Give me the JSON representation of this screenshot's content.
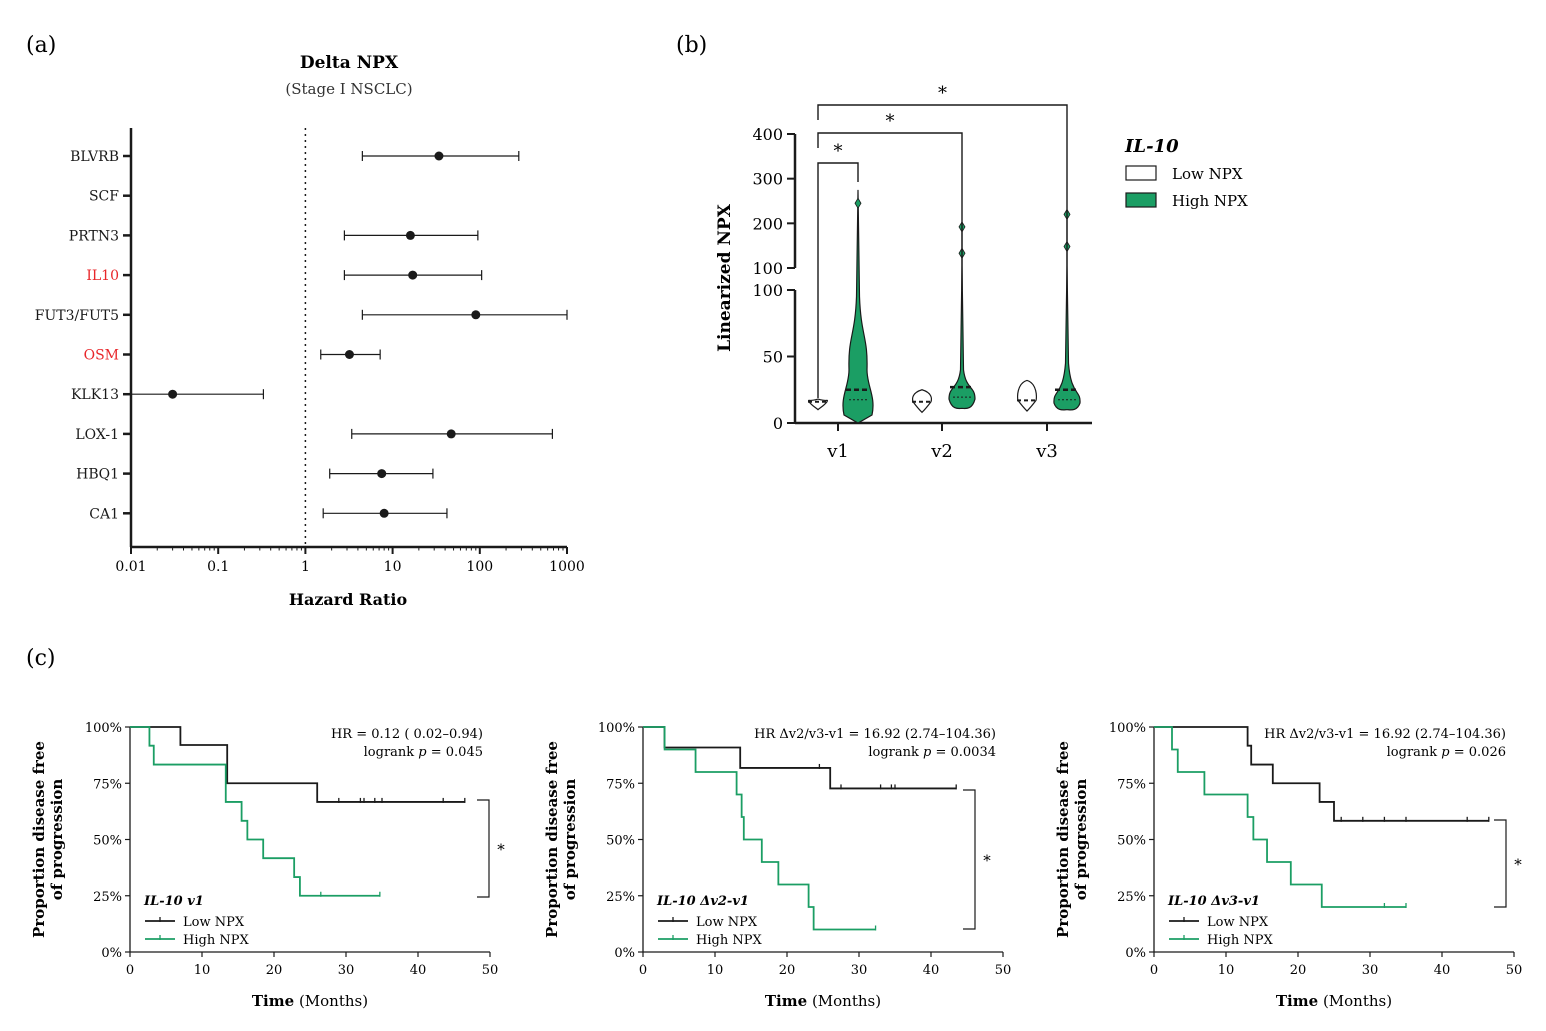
{
  "colors": {
    "black": "#1a1a1a",
    "green": "#1b9e64",
    "red": "#e8262a",
    "gray": "#555555"
  },
  "panel_a": {
    "label": "(a)",
    "title": "Delta NPX",
    "subtitle": "(Stage I NSCLC)",
    "xlabel": "Hazard Ratio",
    "xticks": [
      "0.01",
      "0.1",
      "1",
      "10",
      "100",
      "1000"
    ]
  },
  "panel_b": {
    "label": "(b)",
    "ylabel": "Linearized NPX",
    "legend_title": "IL-10",
    "legend_low": "Low NPX",
    "legend_high": "High NPX",
    "yticks_upper": [
      "100",
      "200",
      "300",
      "400"
    ],
    "yticks_lower": [
      "0",
      "50",
      "100"
    ],
    "xticks": [
      "v1",
      "v2",
      "v3"
    ],
    "sig": "*"
  },
  "panel_c": {
    "label": "(c)",
    "ylabel_line1": "Proportion disease free",
    "ylabel_line2": "of progression",
    "xlabel_bold": "Time",
    "xlabel_rest": " (Months)",
    "yticks": [
      "0%",
      "25%",
      "50%",
      "75%",
      "100%"
    ],
    "xticks": [
      "0",
      "10",
      "20",
      "30",
      "40",
      "50"
    ],
    "legend_low": "Low NPX",
    "legend_high": "High NPX",
    "sig": "*"
  },
  "chart_data": [
    {
      "type": "forest",
      "title": "Delta NPX",
      "subtitle": "(Stage I NSCLC)",
      "xlabel": "Hazard Ratio",
      "xscale": "log",
      "xlim": [
        0.01,
        1000
      ],
      "reference_line": 1,
      "rows": [
        {
          "label": "BLVRB",
          "hr": 34,
          "lo": 4.5,
          "hi": 280,
          "highlight": false
        },
        {
          "label": "SCF",
          "hr": null,
          "lo": null,
          "hi": null,
          "highlight": false
        },
        {
          "label": "PRTN3",
          "hr": 16,
          "lo": 2.8,
          "hi": 95,
          "highlight": false
        },
        {
          "label": "IL10",
          "hr": 17,
          "lo": 2.8,
          "hi": 105,
          "highlight": true
        },
        {
          "label": "FUT3/FUT5",
          "hr": 90,
          "lo": 4.5,
          "hi": 1000,
          "highlight": false
        },
        {
          "label": "OSM",
          "hr": 3.2,
          "lo": 1.5,
          "hi": 7.2,
          "highlight": true
        },
        {
          "label": "KLK13",
          "hr": 0.03,
          "lo": 0.01,
          "hi": 0.33,
          "highlight": false
        },
        {
          "label": "LOX-1",
          "hr": 47,
          "lo": 3.4,
          "hi": 680,
          "highlight": false
        },
        {
          "label": "HBQ1",
          "hr": 7.5,
          "lo": 1.9,
          "hi": 29,
          "highlight": false
        },
        {
          "label": "CA1",
          "hr": 8,
          "lo": 1.6,
          "hi": 42,
          "highlight": false
        }
      ]
    },
    {
      "type": "violin",
      "ylabel": "Linearized NPX",
      "legend_title": "IL-10",
      "categories": [
        "v1",
        "v2",
        "v3"
      ],
      "ylim_lower": [
        0,
        100
      ],
      "ylim_upper": [
        100,
        400
      ],
      "series": [
        {
          "name": "Low NPX",
          "medians": [
            16,
            16,
            17
          ],
          "ranges": [
            [
              10,
              18
            ],
            [
              8,
              25
            ],
            [
              9,
              32
            ]
          ]
        },
        {
          "name": "High NPX",
          "medians": [
            25,
            27,
            25
          ],
          "ranges": [
            [
              0,
              275
            ],
            [
              11,
              195
            ],
            [
              10,
              220
            ]
          ],
          "outliers": [
            [
              245
            ],
            [
              133,
              192
            ],
            [
              148,
              220
            ]
          ]
        }
      ],
      "significance": [
        {
          "from": "v1 Low",
          "to": "v1 High",
          "label": "*"
        },
        {
          "from": "v1 Low",
          "to": "v2 High",
          "label": "*"
        },
        {
          "from": "v1 Low",
          "to": "v3 High",
          "label": "*"
        }
      ]
    },
    {
      "type": "line",
      "subtype": "kaplan-meier",
      "title": "IL-10 v1",
      "annotation_line1": "HR = 0.12 ( 0.02–0.94)",
      "annotation_line2_prefix": "logrank ",
      "annotation_line2_p": "p",
      "annotation_line2_value": " = 0.045",
      "xlabel": "Time (Months)",
      "ylabel": "Proportion disease free of progression",
      "xlim": [
        0,
        50
      ],
      "ylim": [
        0,
        100
      ],
      "series": [
        {
          "name": "Low NPX",
          "steps": [
            [
              0,
              100
            ],
            [
              7,
              92
            ],
            [
              13.5,
              75
            ],
            [
              26,
              66.7
            ],
            [
              46.5,
              66.7
            ]
          ],
          "censor": [
            29,
            32,
            32.5,
            34,
            35,
            43.5,
            46.5
          ]
        },
        {
          "name": "High NPX",
          "steps": [
            [
              0,
              100
            ],
            [
              2.7,
              91.7
            ],
            [
              3.3,
              83.3
            ],
            [
              13.3,
              66.7
            ],
            [
              15.5,
              58.3
            ],
            [
              16.3,
              50
            ],
            [
              18.5,
              41.7
            ],
            [
              22.8,
              33.3
            ],
            [
              23.6,
              25
            ],
            [
              34.7,
              25
            ]
          ],
          "censor": [
            26.5,
            34.7
          ]
        }
      ],
      "significance": "*"
    },
    {
      "type": "line",
      "subtype": "kaplan-meier",
      "title": "IL-10 Δv2-v1",
      "annotation_line1": "HR Δv2/v3-v1 = 16.92 (2.74–104.36)",
      "annotation_line2_prefix": "logrank ",
      "annotation_line2_p": "p",
      "annotation_line2_value": " =  0.0034",
      "xlabel": "Time (Months)",
      "ylabel": "Proportion disease free of progression",
      "xlim": [
        0,
        50
      ],
      "ylim": [
        0,
        100
      ],
      "series": [
        {
          "name": "Low NPX",
          "steps": [
            [
              0,
              100
            ],
            [
              3,
              90.9
            ],
            [
              13.5,
              81.8
            ],
            [
              26,
              72.7
            ],
            [
              43.5,
              72.7
            ]
          ],
          "censor": [
            24.5,
            27.5,
            33,
            34.5,
            35,
            43.5
          ]
        },
        {
          "name": "High NPX",
          "steps": [
            [
              0,
              100
            ],
            [
              3,
              90
            ],
            [
              7.3,
              80
            ],
            [
              13,
              70
            ],
            [
              13.7,
              60
            ],
            [
              14,
              50
            ],
            [
              16.5,
              40
            ],
            [
              18.8,
              30
            ],
            [
              23,
              20
            ],
            [
              23.7,
              10
            ],
            [
              32.3,
              10
            ]
          ],
          "censor": [
            32.3
          ]
        }
      ],
      "significance": "*"
    },
    {
      "type": "line",
      "subtype": "kaplan-meier",
      "title": "IL-10 Δv3-v1",
      "annotation_line1": "HR Δv2/v3-v1 = 16.92 (2.74–104.36)",
      "annotation_line2_prefix": "logrank ",
      "annotation_line2_p": "p",
      "annotation_line2_value": " = 0.026",
      "xlabel": "Time (Months)",
      "ylabel": "Proportion disease free of progression",
      "xlim": [
        0,
        50
      ],
      "ylim": [
        0,
        100
      ],
      "series": [
        {
          "name": "Low NPX",
          "steps": [
            [
              0,
              100
            ],
            [
              13,
              91.7
            ],
            [
              13.5,
              83.3
            ],
            [
              16.5,
              75
            ],
            [
              23,
              66.7
            ],
            [
              25,
              58.3
            ],
            [
              46.5,
              58.3
            ]
          ],
          "censor": [
            26,
            29,
            32,
            35,
            43.5,
            46.5
          ]
        },
        {
          "name": "High NPX",
          "steps": [
            [
              0,
              100
            ],
            [
              2.5,
              90
            ],
            [
              3.3,
              80
            ],
            [
              7,
              70
            ],
            [
              13,
              60
            ],
            [
              13.8,
              50
            ],
            [
              15.7,
              40
            ],
            [
              19,
              30
            ],
            [
              23.3,
              20
            ],
            [
              35,
              20
            ]
          ],
          "censor": [
            32,
            35
          ]
        }
      ],
      "significance": "*"
    }
  ]
}
